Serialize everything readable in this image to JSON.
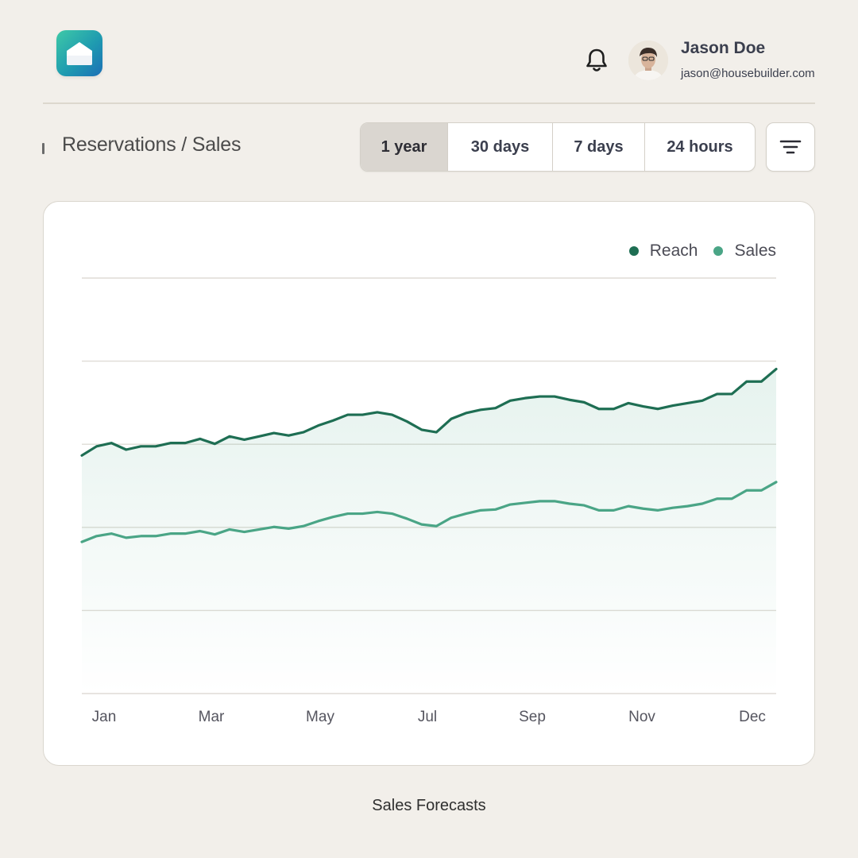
{
  "header": {
    "user_name": "Jason Doe",
    "user_email": "jason@housebuilder.com",
    "icons": {
      "logo": "house-icon",
      "notifications": "bell-icon",
      "filter": "filter-lines-icon"
    }
  },
  "toolbar": {
    "title": "Reservations / Sales",
    "ranges": [
      "1 year",
      "30 days",
      "7 days",
      "24 hours"
    ],
    "active_range": "1 year"
  },
  "colors": {
    "reach": "#1e6e53",
    "sales": "#4aa586",
    "background": "#f2efea",
    "card": "#ffffff"
  },
  "chart_data": {
    "type": "area",
    "title": "",
    "xlabel": "",
    "ylabel": "",
    "x_ticks": [
      "Jan",
      "Mar",
      "May",
      "Jul",
      "Sep",
      "Nov",
      "Dec"
    ],
    "ylim": [
      0,
      100
    ],
    "grid": true,
    "legend": "top-right",
    "series": [
      {
        "name": "Reach",
        "values": [
          57.3,
          59.5,
          60.3,
          58.7,
          59.5,
          59.5,
          60.3,
          60.3,
          61.3,
          60.1,
          61.9,
          61.1,
          61.9,
          62.7,
          62.1,
          62.9,
          64.5,
          65.7,
          67.1,
          67.1,
          67.7,
          67.1,
          65.5,
          63.5,
          62.9,
          66.1,
          67.5,
          68.3,
          68.7,
          70.5,
          71.1,
          71.5,
          71.5,
          70.7,
          70.1,
          68.5,
          68.5,
          69.9,
          69.1,
          68.5,
          69.3,
          69.9,
          70.5,
          72.1,
          72.1,
          75.1,
          75.1,
          78.1
        ]
      },
      {
        "name": "Sales",
        "values": [
          36.5,
          37.9,
          38.5,
          37.5,
          37.9,
          37.9,
          38.5,
          38.5,
          39.1,
          38.3,
          39.5,
          38.9,
          39.5,
          40.1,
          39.7,
          40.3,
          41.5,
          42.5,
          43.3,
          43.3,
          43.7,
          43.3,
          42.1,
          40.7,
          40.3,
          42.3,
          43.3,
          44.1,
          44.3,
          45.5,
          45.9,
          46.3,
          46.3,
          45.7,
          45.3,
          44.1,
          44.1,
          45.1,
          44.5,
          44.1,
          44.7,
          45.1,
          45.7,
          46.9,
          46.9,
          48.9,
          48.9,
          50.9
        ]
      }
    ]
  },
  "caption": "Sales Forecasts"
}
